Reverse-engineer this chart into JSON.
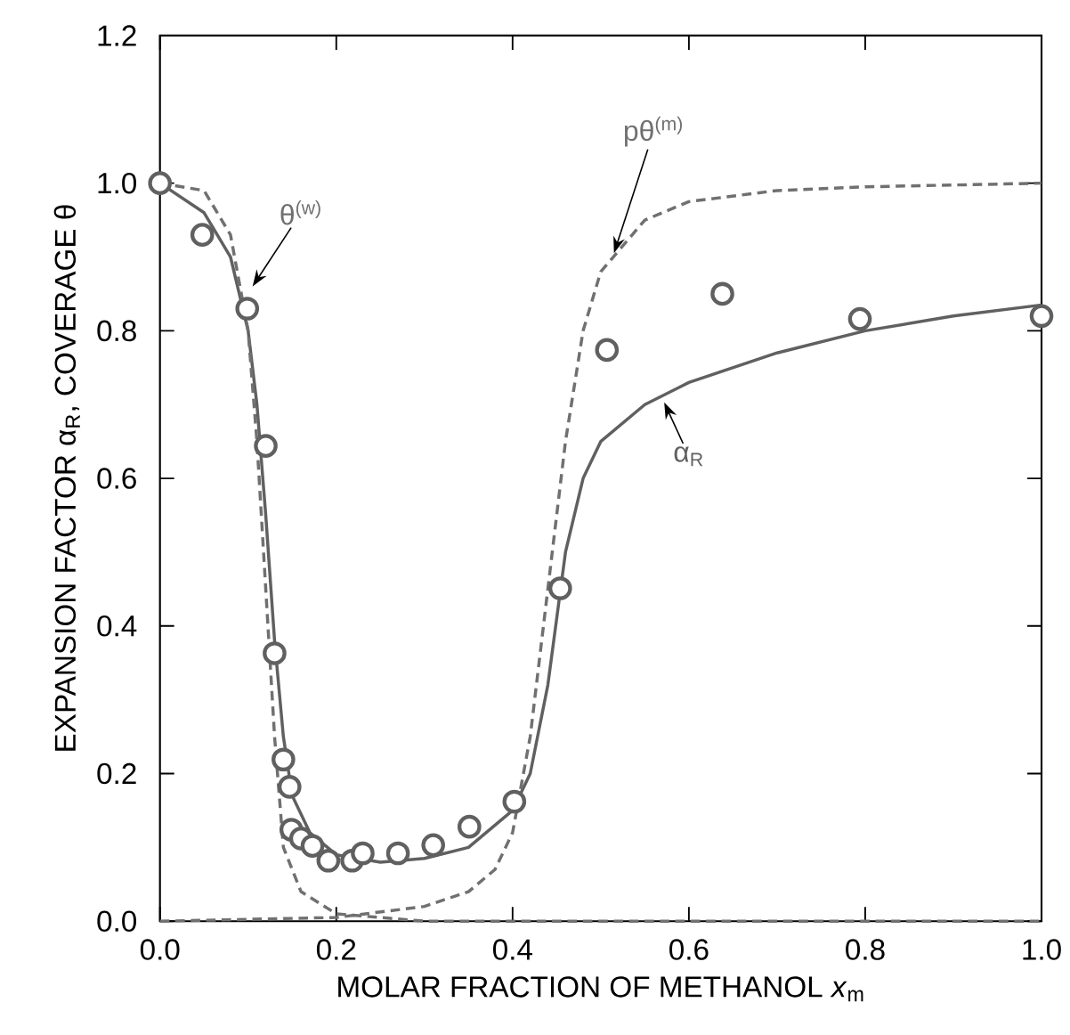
{
  "chart_data": {
    "type": "line",
    "xlabel": "MOLAR FRACTION OF METHANOL *x*$_{m}$",
    "ylabel": "EXPANSION FACTOR α$_{R}$, COVERAGE θ",
    "xlim": [
      0,
      1
    ],
    "ylim": [
      0,
      1.2
    ],
    "xticks": [
      {
        "value": 0,
        "label": "0.0"
      },
      0.2,
      0.4,
      0.6,
      0.8,
      {
        "value": 1,
        "label": "1.0"
      }
    ],
    "yticks": [
      {
        "value": 0,
        "label": "0.0"
      },
      0.2,
      0.4,
      0.6,
      0.8,
      {
        "value": 1,
        "label": "1.0"
      },
      1.2
    ],
    "series": [
      {
        "type": "scatter",
        "marker": "circle",
        "color": "#606060",
        "x": [
          0,
          0.048,
          0.099,
          0.12,
          0.13,
          0.14,
          0.147,
          0.149,
          0.16,
          0.173,
          0.191,
          0.218,
          0.23,
          0.27,
          0.31,
          0.351,
          0.402,
          0.454,
          0.507,
          0.638,
          0.794,
          1.0
        ],
        "values": [
          1.0,
          0.93,
          0.83,
          0.644,
          0.363,
          0.219,
          0.182,
          0.124,
          0.112,
          0.102,
          0.082,
          0.082,
          0.092,
          0.092,
          0.103,
          0.128,
          0.162,
          0.451,
          0.774,
          0.85,
          0.816,
          0.82
        ]
      },
      {
        "name": "α$_{R}$",
        "line_style": "solid",
        "color": "#606060",
        "x": [
          0,
          0.05,
          0.08,
          0.1,
          0.11,
          0.12,
          0.13,
          0.14,
          0.15,
          0.17,
          0.2,
          0.25,
          0.3,
          0.35,
          0.4,
          0.42,
          0.44,
          0.46,
          0.48,
          0.5,
          0.55,
          0.6,
          0.7,
          0.8,
          0.9,
          1.0
        ],
        "values": [
          1.0,
          0.96,
          0.9,
          0.8,
          0.7,
          0.55,
          0.38,
          0.25,
          0.17,
          0.12,
          0.09,
          0.08,
          0.085,
          0.1,
          0.15,
          0.2,
          0.32,
          0.5,
          0.6,
          0.65,
          0.7,
          0.73,
          0.77,
          0.8,
          0.82,
          0.835
        ]
      },
      {
        "name": "θ$^{(w)}$",
        "line_style": "dashed",
        "color": "#707070",
        "x": [
          0,
          0.05,
          0.08,
          0.1,
          0.11,
          0.12,
          0.13,
          0.14,
          0.16,
          0.2,
          0.3,
          0.5,
          1.0
        ],
        "values": [
          1.0,
          0.99,
          0.93,
          0.8,
          0.65,
          0.45,
          0.25,
          0.1,
          0.04,
          0.01,
          0.0,
          0.0,
          0.0
        ]
      },
      {
        "name": "pθ$^{(m)}$",
        "line_style": "dashed",
        "color": "#707070",
        "x": [
          0,
          0.2,
          0.3,
          0.35,
          0.38,
          0.4,
          0.42,
          0.44,
          0.46,
          0.48,
          0.5,
          0.55,
          0.6,
          0.7,
          0.8,
          1.0
        ],
        "values": [
          0,
          0.005,
          0.02,
          0.04,
          0.07,
          0.12,
          0.25,
          0.45,
          0.65,
          0.8,
          0.88,
          0.95,
          0.975,
          0.99,
          0.995,
          1.0
        ]
      }
    ]
  }
}
